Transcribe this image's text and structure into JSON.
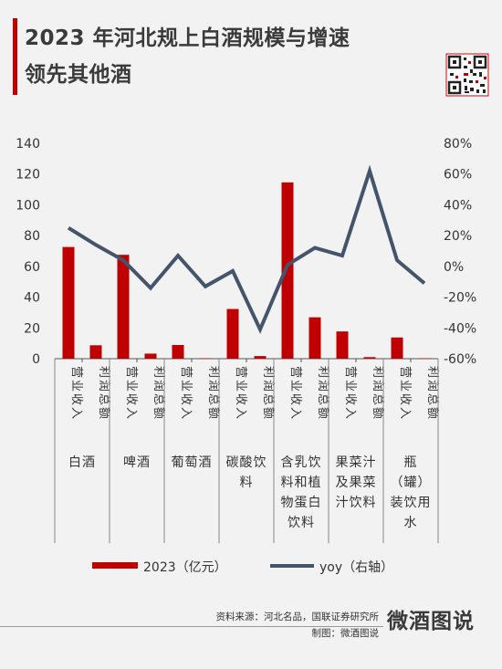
{
  "title": {
    "line1": "2023 年河北规上白酒规模与增速",
    "line2": "领先其他酒"
  },
  "source": {
    "line1": "资料来源：河北名品，国联证券研究所",
    "line2": "制图：微酒图说"
  },
  "brand": "微酒图说",
  "colors": {
    "bar": "#c00000",
    "line": "#44546a",
    "text": "#333333"
  },
  "chart_data": {
    "type": "bar+line",
    "left_axis": {
      "ylim": [
        0,
        140
      ],
      "ticks": [
        0,
        20,
        40,
        60,
        80,
        100,
        120,
        140
      ]
    },
    "right_axis": {
      "ylim": [
        -0.6,
        0.8
      ],
      "ticks": [
        "-60%",
        "-40%",
        "-20%",
        "0%",
        "20%",
        "40%",
        "60%",
        "80%"
      ]
    },
    "grid": false,
    "legend_position": "bottom",
    "categories": [
      {
        "group": "白酒",
        "metric": "营业收入"
      },
      {
        "group": "白酒",
        "metric": "利润总额"
      },
      {
        "group": "啤酒",
        "metric": "营业收入"
      },
      {
        "group": "啤酒",
        "metric": "利润总额"
      },
      {
        "group": "葡萄酒",
        "metric": "营业收入"
      },
      {
        "group": "葡萄酒",
        "metric": "利润总额"
      },
      {
        "group": "碳酸饮料",
        "metric": "营业收入"
      },
      {
        "group": "碳酸饮料",
        "metric": "利润总额"
      },
      {
        "group": "含乳饮料和植物蛋白饮料",
        "metric": "营业收入"
      },
      {
        "group": "含乳饮料和植物蛋白饮料",
        "metric": "利润总额"
      },
      {
        "group": "果菜汁及果菜汁饮料",
        "metric": "营业收入"
      },
      {
        "group": "果菜汁及果菜汁饮料",
        "metric": "利润总额"
      },
      {
        "group": "瓶（罐）装饮用水",
        "metric": "营业收入"
      },
      {
        "group": "瓶（罐）装饮用水",
        "metric": "利润总额"
      }
    ],
    "groups": [
      {
        "lines": [
          "白酒"
        ]
      },
      {
        "lines": [
          "啤酒"
        ]
      },
      {
        "lines": [
          "葡萄酒"
        ]
      },
      {
        "lines": [
          "碳酸饮",
          "料"
        ]
      },
      {
        "lines": [
          "含乳饮",
          "料和植",
          "物蛋白",
          "饮料"
        ]
      },
      {
        "lines": [
          "果菜汁",
          "及果菜",
          "汁饮料"
        ]
      },
      {
        "lines": [
          "瓶",
          "（罐）",
          "装饮用",
          "水"
        ]
      }
    ],
    "series": [
      {
        "name": "2023（亿元）",
        "type": "bar",
        "axis": "left",
        "values": [
          72.6,
          8.7,
          67.5,
          3.3,
          8.9,
          0.3,
          32.3,
          1.7,
          114.6,
          26.9,
          17.7,
          1.0,
          13.8,
          0.3
        ]
      },
      {
        "name": "yoy（右轴）",
        "type": "line",
        "axis": "right",
        "values": [
          0.25,
          0.14,
          0.04,
          -0.14,
          0.07,
          -0.13,
          -0.03,
          -0.41,
          0.01,
          0.12,
          0.07,
          0.62,
          0.04,
          -0.11
        ]
      }
    ]
  }
}
